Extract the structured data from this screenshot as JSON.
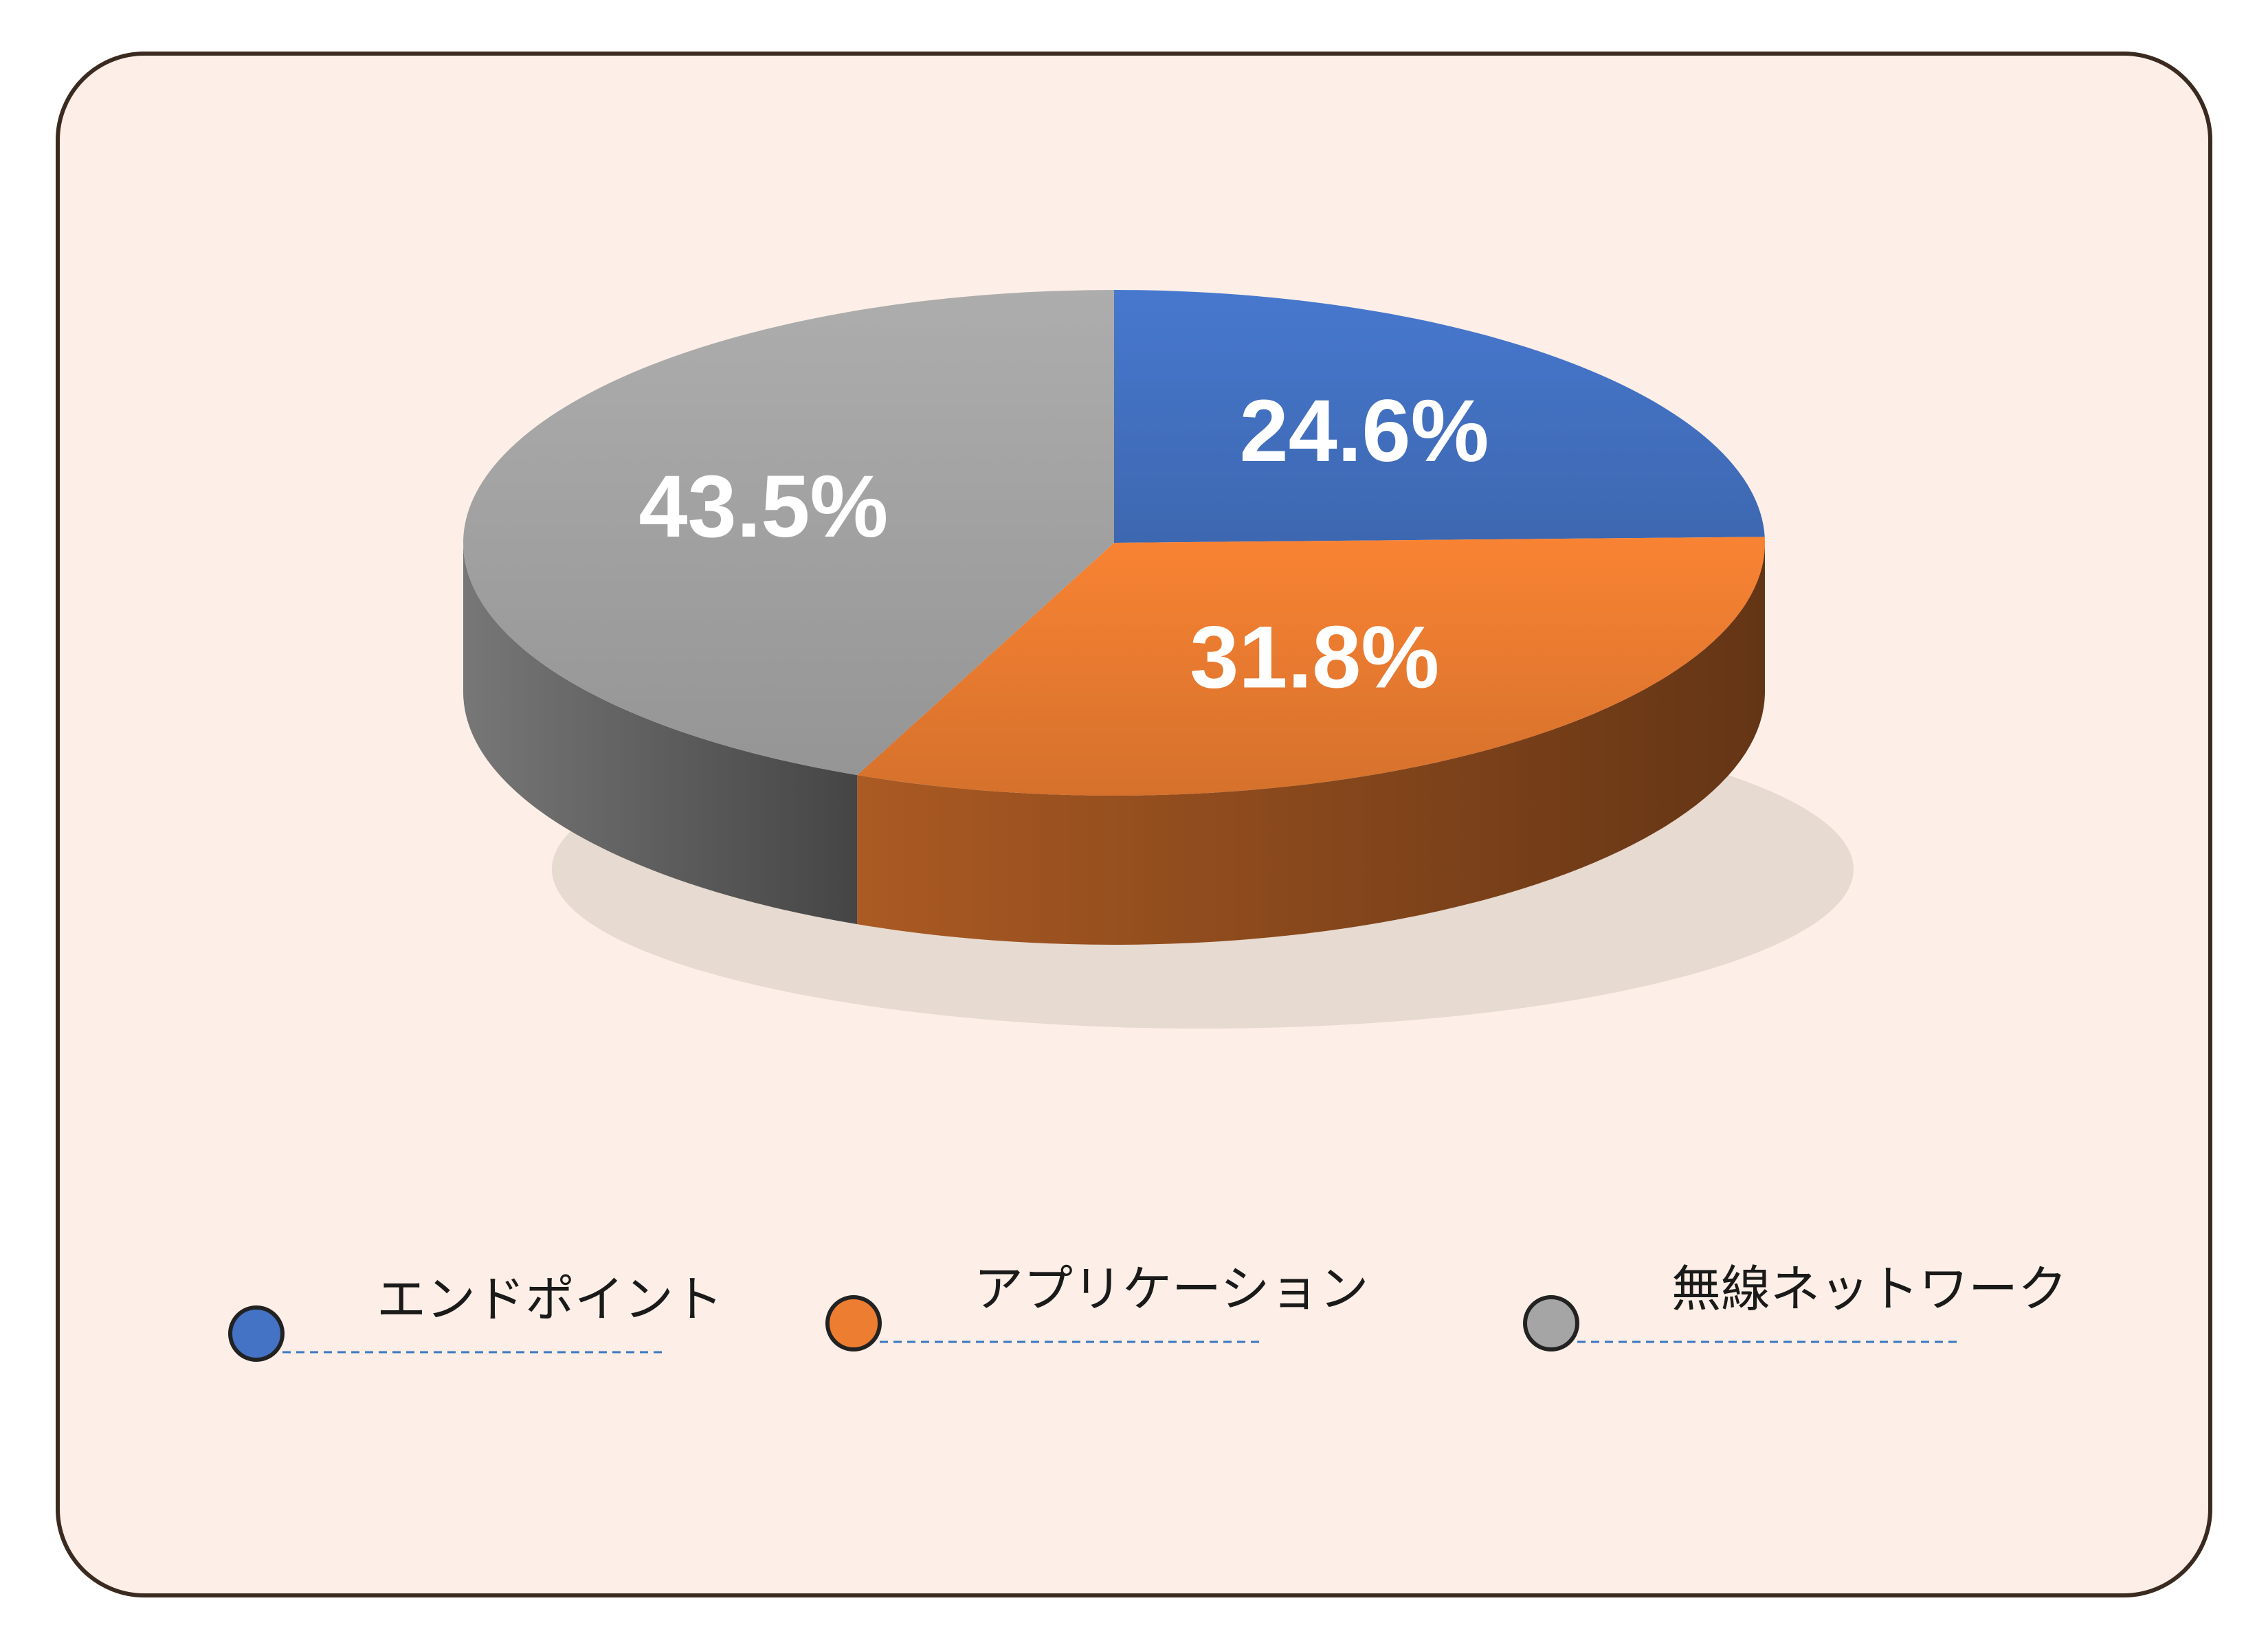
{
  "chart_data": {
    "type": "pie",
    "style": "3d",
    "categories": [
      "エンドポイント",
      "アプリケーション",
      "無線ネットワーク"
    ],
    "values": [
      24.6,
      31.8,
      43.5
    ],
    "value_labels": [
      "24.6%",
      "31.8%",
      "43.5%"
    ],
    "colors": [
      "#4472c4",
      "#ed7d31",
      "#a5a5a5"
    ],
    "legend": "bottom"
  }
}
